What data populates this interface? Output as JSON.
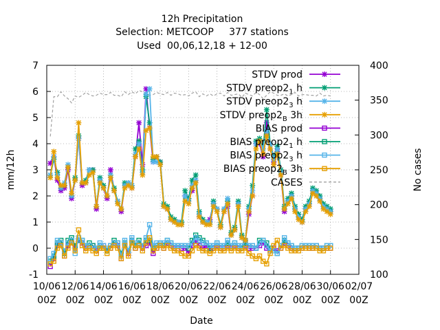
{
  "chart_data": {
    "type": "line",
    "title": [
      "12h Precipitation",
      "Selection: METCOOP     377 stations",
      "Used  00,06,12,18 + 12-00"
    ],
    "xlabel": "Date",
    "ylabel": "mm/12h",
    "y2label": "No cases",
    "ylim": [
      -1,
      7
    ],
    "y2lim": [
      100,
      400
    ],
    "xlim": [
      0,
      22
    ],
    "grid": true,
    "legend_position": "top-right",
    "x_ticks": [
      {
        "x": 0,
        "line1": "10/06",
        "line2": "00Z"
      },
      {
        "x": 2,
        "line1": "12/06",
        "line2": "00Z"
      },
      {
        "x": 4,
        "line1": "14/06",
        "line2": "00Z"
      },
      {
        "x": 6,
        "line1": "16/06",
        "line2": "00Z"
      },
      {
        "x": 8,
        "line1": "18/06",
        "line2": "00Z"
      },
      {
        "x": 10,
        "line1": "20/06",
        "line2": "00Z"
      },
      {
        "x": 12,
        "line1": "22/06",
        "line2": "00Z"
      },
      {
        "x": 14,
        "line1": "24/06",
        "line2": "00Z"
      },
      {
        "x": 16,
        "line1": "26/06",
        "line2": "00Z"
      },
      {
        "x": 18,
        "line1": "28/06",
        "line2": "00Z"
      },
      {
        "x": 20,
        "line1": "30/06",
        "line2": "00Z"
      },
      {
        "x": 22,
        "line1": "02/07",
        "line2": "00Z"
      }
    ],
    "y_ticks": [
      "-1",
      "0",
      "1",
      "2",
      "3",
      "4",
      "5",
      "6",
      "7"
    ],
    "y2_ticks": [
      "100",
      "150",
      "200",
      "250",
      "300",
      "350",
      "400"
    ],
    "x_days": [
      0.25,
      0.5,
      0.75,
      1.0,
      1.25,
      1.5,
      1.75,
      2.0,
      2.25,
      2.5,
      2.75,
      3.0,
      3.25,
      3.5,
      3.75,
      4.0,
      4.25,
      4.5,
      4.75,
      5.0,
      5.25,
      5.5,
      5.75,
      6.0,
      6.25,
      6.5,
      6.75,
      7.0,
      7.25,
      7.5,
      7.75,
      8.0,
      8.25,
      8.5,
      8.75,
      9.0,
      9.25,
      9.5,
      9.75,
      10.0,
      10.25,
      10.5,
      10.75,
      11.0,
      11.25,
      11.5,
      11.75,
      12.0,
      12.25,
      12.5,
      12.75,
      13.0,
      13.25,
      13.5,
      13.75,
      14.0,
      14.25,
      14.5,
      14.75,
      15.0,
      15.25,
      15.5,
      15.75,
      16.0,
      16.25,
      16.5,
      16.75,
      17.0,
      17.25,
      17.5,
      17.75,
      18.0,
      18.25,
      18.5,
      18.75,
      19.0,
      19.25,
      19.5,
      19.75,
      20.0
    ],
    "series": [
      {
        "name": "STDV prod",
        "color": "#9400d3",
        "marker": "x",
        "dash": "none",
        "axis": "y",
        "values": [
          3.25,
          3.5,
          2.6,
          2.2,
          2.3,
          3.0,
          1.9,
          2.6,
          4.2,
          2.4,
          2.5,
          3.0,
          3.0,
          1.5,
          2.6,
          2.3,
          1.9,
          3.0,
          2.2,
          1.8,
          1.4,
          2.4,
          2.5,
          2.3,
          3.5,
          4.8,
          3.2,
          6.1,
          4.6,
          3.3,
          3.5,
          3.3,
          1.6,
          1.5,
          1.1,
          1.0,
          1.0,
          0.9,
          2.0,
          1.9,
          2.2,
          2.6,
          1.2,
          1.0,
          1.0,
          1.1,
          1.7,
          1.5,
          0.8,
          1.4,
          1.6,
          0.5,
          0.7,
          1.7,
          0.4,
          0.3,
          1.3,
          2.0,
          4.0,
          4.0,
          3.5,
          4.8,
          3.8,
          3.3,
          3.7,
          2.8,
          1.4,
          1.8,
          2.0,
          1.5,
          1.2,
          1.0,
          1.5,
          1.7,
          2.2,
          2.1,
          1.9,
          1.6,
          1.5,
          1.4
        ]
      },
      {
        "name": "STDV preop2_1h",
        "color": "#009e73",
        "marker": "x",
        "dash": "none",
        "axis": "y",
        "values": [
          2.8,
          3.4,
          2.9,
          2.3,
          2.4,
          3.1,
          2.0,
          2.7,
          4.3,
          2.5,
          2.6,
          3.0,
          3.0,
          1.6,
          2.7,
          2.4,
          2.0,
          2.8,
          2.3,
          1.8,
          1.5,
          2.5,
          2.5,
          2.4,
          3.8,
          4.1,
          3.0,
          5.8,
          4.8,
          3.4,
          3.5,
          3.3,
          1.7,
          1.6,
          1.2,
          1.1,
          1.0,
          1.0,
          2.2,
          1.9,
          2.6,
          2.8,
          1.4,
          1.1,
          1.0,
          1.0,
          1.8,
          1.5,
          0.9,
          1.5,
          1.8,
          0.6,
          0.8,
          1.8,
          0.5,
          0.3,
          1.6,
          2.4,
          4.1,
          4.2,
          3.8,
          5.3,
          4.0,
          3.5,
          3.9,
          3.0,
          1.6,
          1.9,
          2.1,
          1.6,
          1.3,
          1.1,
          1.6,
          1.8,
          2.3,
          2.2,
          2.0,
          1.7,
          1.6,
          1.5
        ]
      },
      {
        "name": "STDV preop2_3h",
        "color": "#56b4e9",
        "marker": "x",
        "dash": "none",
        "axis": "y",
        "values": [
          2.8,
          3.5,
          2.8,
          2.3,
          2.5,
          3.2,
          2.0,
          2.6,
          4.2,
          2.5,
          2.5,
          3.0,
          2.9,
          1.6,
          2.6,
          2.3,
          2.0,
          2.8,
          2.2,
          1.8,
          1.5,
          2.4,
          2.5,
          2.4,
          3.6,
          4.0,
          2.9,
          5.9,
          6.1,
          3.3,
          3.3,
          3.2,
          1.6,
          1.5,
          1.1,
          1.0,
          1.0,
          0.9,
          2.0,
          1.8,
          2.4,
          2.6,
          1.3,
          1.0,
          1.0,
          1.0,
          1.7,
          1.5,
          0.8,
          1.5,
          1.9,
          0.5,
          0.7,
          1.7,
          0.4,
          0.3,
          1.5,
          2.2,
          4.0,
          4.1,
          3.8,
          4.5,
          4.0,
          3.4,
          3.8,
          2.9,
          1.5,
          1.8,
          2.0,
          1.5,
          1.2,
          1.0,
          1.5,
          1.7,
          2.2,
          2.1,
          1.9,
          1.6,
          1.5,
          1.4
        ]
      },
      {
        "name": "STDV preop2_B3h",
        "color": "#e69f00",
        "marker": "x",
        "dash": "none",
        "axis": "y",
        "values": [
          2.7,
          3.7,
          2.7,
          2.4,
          2.4,
          3.1,
          2.1,
          2.6,
          4.8,
          2.5,
          2.5,
          2.8,
          2.9,
          1.6,
          2.5,
          2.3,
          2.0,
          2.7,
          2.2,
          1.7,
          1.5,
          2.3,
          2.4,
          2.3,
          3.5,
          3.8,
          2.8,
          4.5,
          4.6,
          3.5,
          3.5,
          3.2,
          1.6,
          1.5,
          1.1,
          1.0,
          0.9,
          0.9,
          1.8,
          1.7,
          2.3,
          2.5,
          1.2,
          1.0,
          0.9,
          0.9,
          1.6,
          1.4,
          0.8,
          1.4,
          1.7,
          0.5,
          0.7,
          1.6,
          0.4,
          0.3,
          1.4,
          2.0,
          3.8,
          4.1,
          3.6,
          4.3,
          3.8,
          3.2,
          3.6,
          2.8,
          1.5,
          1.7,
          1.9,
          1.4,
          1.1,
          1.0,
          1.4,
          1.6,
          2.1,
          2.0,
          1.8,
          1.5,
          1.4,
          1.3
        ]
      },
      {
        "name": "BIAS prod",
        "color": "#9400d3",
        "marker": "square",
        "dash": "none",
        "axis": "y",
        "values": [
          -0.7,
          -0.4,
          0.1,
          0.2,
          -0.3,
          0.1,
          0.2,
          0.0,
          0.3,
          0.2,
          0.0,
          0.1,
          0.1,
          -0.1,
          0.0,
          0.1,
          -0.1,
          0.0,
          0.2,
          0.1,
          -0.4,
          0.1,
          -0.2,
          0.3,
          0.0,
          0.1,
          0.0,
          0.1,
          0.2,
          -0.2,
          0.0,
          0.1,
          0.0,
          0.2,
          0.1,
          0.0,
          0.1,
          0.0,
          0.0,
          -0.2,
          0.1,
          0.3,
          0.1,
          0.0,
          0.1,
          -0.1,
          0.0,
          0.1,
          0.0,
          0.0,
          0.1,
          0.0,
          0.1,
          0.0,
          0.0,
          0.1,
          0.0,
          0.0,
          0.0,
          0.1,
          0.2,
          0.0,
          -0.1,
          0.0,
          -0.1,
          0.0,
          0.2,
          0.1,
          0.0,
          -0.1,
          0.0,
          0.0,
          0.1,
          0.0,
          0.0,
          0.1,
          0.0,
          0.0,
          0.0,
          0.0
        ]
      },
      {
        "name": "BIAS preop2_1h",
        "color": "#009e73",
        "marker": "square",
        "dash": "none",
        "axis": "y",
        "values": [
          -0.5,
          -0.3,
          0.2,
          0.3,
          -0.2,
          0.3,
          0.4,
          0.1,
          0.3,
          0.3,
          0.1,
          0.2,
          0.1,
          0.0,
          0.1,
          0.0,
          -0.1,
          0.1,
          0.3,
          0.2,
          -0.2,
          0.2,
          -0.1,
          0.3,
          0.1,
          0.3,
          0.1,
          0.3,
          0.3,
          0.0,
          0.1,
          0.2,
          0.1,
          0.3,
          0.2,
          0.1,
          0.1,
          0.1,
          0.1,
          0.0,
          0.3,
          0.5,
          0.4,
          0.3,
          0.2,
          0.0,
          0.1,
          0.2,
          0.1,
          0.1,
          0.2,
          0.1,
          0.2,
          0.1,
          0.0,
          0.2,
          0.1,
          0.1,
          0.0,
          0.3,
          0.3,
          0.2,
          0.0,
          -0.1,
          -0.2,
          0.1,
          0.3,
          0.2,
          0.1,
          0.0,
          0.0,
          0.1,
          0.1,
          0.1,
          0.1,
          0.1,
          0.0,
          0.0,
          0.1,
          0.1
        ]
      },
      {
        "name": "BIAS preop2_3h",
        "color": "#56b4e9",
        "marker": "square",
        "dash": "none",
        "axis": "y",
        "values": [
          -0.4,
          -0.2,
          0.3,
          0.2,
          -0.1,
          0.2,
          0.3,
          -0.2,
          0.4,
          0.3,
          0.1,
          0.1,
          0.0,
          0.0,
          0.2,
          0.1,
          0.0,
          0.1,
          0.2,
          0.2,
          -0.3,
          0.3,
          -0.1,
          0.4,
          0.2,
          0.2,
          0.1,
          0.4,
          0.9,
          0.1,
          0.2,
          0.2,
          0.2,
          0.3,
          0.2,
          0.1,
          0.1,
          0.1,
          0.1,
          0.1,
          0.2,
          0.4,
          0.3,
          0.2,
          0.2,
          0.1,
          0.1,
          0.2,
          0.1,
          0.1,
          0.3,
          0.1,
          0.2,
          0.1,
          0.1,
          0.3,
          0.1,
          0.1,
          0.0,
          0.2,
          0.3,
          0.1,
          -0.1,
          -0.1,
          -0.2,
          0.1,
          0.4,
          0.2,
          0.1,
          0.0,
          0.0,
          0.1,
          0.1,
          0.1,
          0.1,
          0.1,
          0.0,
          0.0,
          0.1,
          0.1
        ]
      },
      {
        "name": "BIAS preop2_B3h",
        "color": "#e69f00",
        "marker": "square",
        "dash": "none",
        "axis": "y",
        "values": [
          -0.6,
          -0.5,
          0.0,
          0.1,
          -0.3,
          0.0,
          0.2,
          -0.1,
          0.7,
          0.1,
          -0.1,
          0.0,
          -0.1,
          -0.2,
          0.0,
          0.0,
          -0.2,
          0.0,
          0.1,
          0.0,
          -0.4,
          0.1,
          -0.3,
          0.2,
          0.0,
          0.1,
          -0.1,
          0.2,
          0.4,
          -0.1,
          0.0,
          0.1,
          0.0,
          0.1,
          0.0,
          -0.1,
          -0.1,
          -0.2,
          -0.3,
          -0.3,
          -0.1,
          0.1,
          0.0,
          -0.1,
          -0.1,
          -0.2,
          -0.1,
          0.0,
          -0.1,
          -0.1,
          0.0,
          -0.1,
          0.0,
          -0.1,
          -0.1,
          0.0,
          -0.2,
          -0.3,
          -0.4,
          -0.3,
          -0.5,
          -0.6,
          -0.2,
          0.1,
          0.3,
          0.0,
          0.1,
          0.0,
          -0.1,
          -0.1,
          -0.1,
          0.0,
          0.0,
          0.0,
          0.0,
          0.0,
          -0.1,
          -0.1,
          0.0,
          0.0
        ]
      },
      {
        "name": "CASES",
        "color": "#a0a0a0",
        "marker": "none",
        "dash": "dashed",
        "axis": "y2",
        "values": [
          298,
          355,
          355,
          362,
          356,
          352,
          346,
          356,
          354,
          357,
          361,
          358,
          356,
          357,
          360,
          358,
          358,
          361,
          357,
          357,
          355,
          362,
          358,
          362,
          359,
          364,
          362,
          358,
          357,
          358,
          361,
          359,
          358,
          361,
          357,
          360,
          359,
          357,
          358,
          356,
          360,
          362,
          355,
          359,
          356,
          359,
          356,
          359,
          360,
          356,
          361,
          357,
          358,
          359,
          354,
          360,
          358,
          356,
          361,
          358,
          352,
          357,
          362,
          360,
          357,
          357,
          359,
          356,
          358,
          361,
          356,
          358,
          358,
          357,
          357,
          356,
          360,
          356,
          357,
          356
        ]
      }
    ]
  }
}
